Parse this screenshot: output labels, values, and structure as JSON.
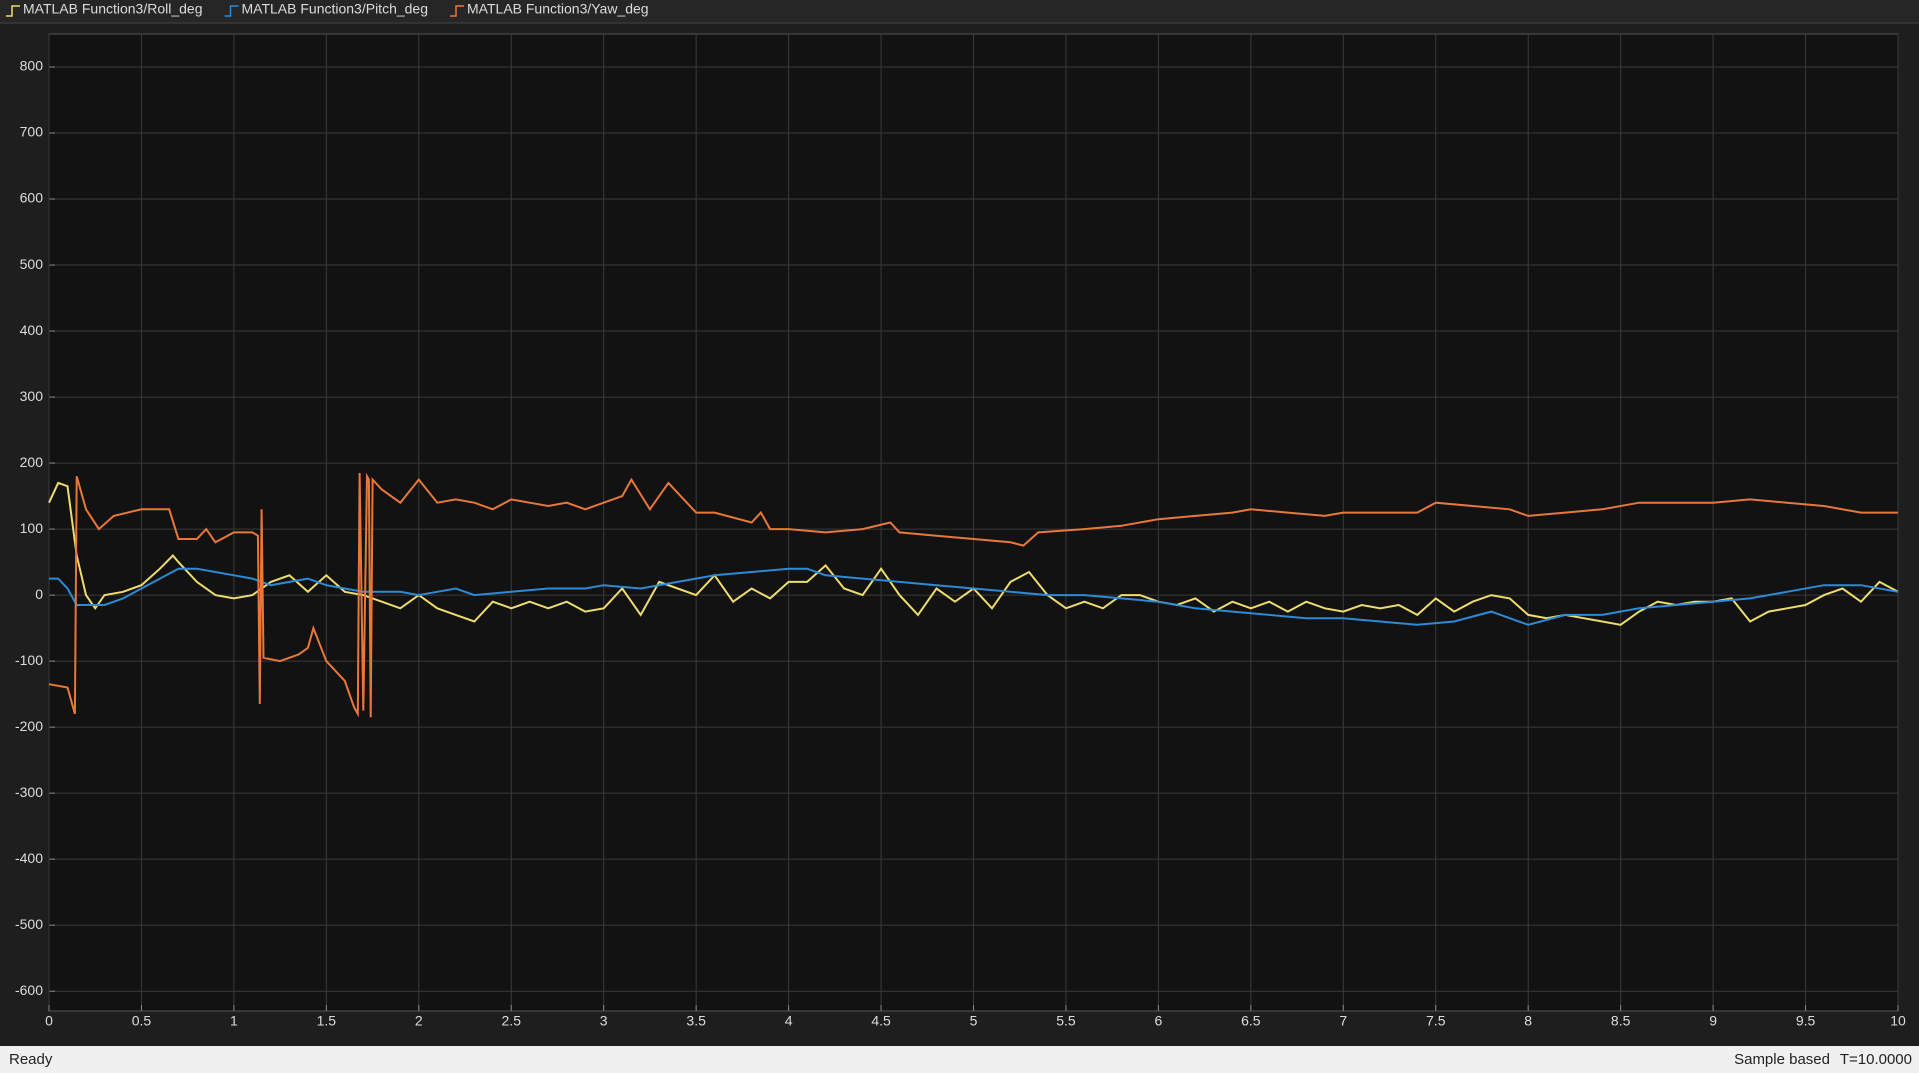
{
  "chart_data": {
    "type": "line",
    "series": [
      {
        "name": "MATLAB Function3/Roll_deg",
        "color": "#eedc6c",
        "x": [
          0,
          0.05,
          0.1,
          0.15,
          0.2,
          0.25,
          0.3,
          0.4,
          0.5,
          0.6,
          0.67,
          0.7,
          0.8,
          0.9,
          1.0,
          1.1,
          1.2,
          1.3,
          1.4,
          1.5,
          1.6,
          1.7,
          1.8,
          1.9,
          2.0,
          2.1,
          2.2,
          2.3,
          2.4,
          2.5,
          2.6,
          2.7,
          2.8,
          2.9,
          3.0,
          3.1,
          3.2,
          3.3,
          3.4,
          3.5,
          3.6,
          3.7,
          3.8,
          3.9,
          4.0,
          4.1,
          4.2,
          4.3,
          4.4,
          4.5,
          4.6,
          4.7,
          4.8,
          4.9,
          5.0,
          5.1,
          5.2,
          5.3,
          5.4,
          5.5,
          5.6,
          5.7,
          5.8,
          5.9,
          6.0,
          6.1,
          6.2,
          6.3,
          6.4,
          6.5,
          6.6,
          6.7,
          6.8,
          6.9,
          7.0,
          7.1,
          7.2,
          7.3,
          7.4,
          7.5,
          7.6,
          7.7,
          7.8,
          7.9,
          8.0,
          8.1,
          8.2,
          8.3,
          8.4,
          8.5,
          8.6,
          8.7,
          8.8,
          8.9,
          9.0,
          9.1,
          9.2,
          9.3,
          9.4,
          9.5,
          9.6,
          9.7,
          9.8,
          9.9,
          10
        ],
        "values": [
          140,
          170,
          165,
          60,
          0,
          -20,
          0,
          5,
          15,
          40,
          60,
          50,
          20,
          0,
          -5,
          0,
          20,
          30,
          5,
          30,
          5,
          0,
          -10,
          -20,
          0,
          -20,
          -30,
          -40,
          -10,
          -20,
          -10,
          -20,
          -10,
          -25,
          -20,
          10,
          -30,
          20,
          10,
          0,
          30,
          -10,
          10,
          -5,
          20,
          20,
          45,
          10,
          0,
          40,
          0,
          -30,
          10,
          -10,
          10,
          -20,
          20,
          35,
          0,
          -20,
          -10,
          -20,
          0,
          0,
          -10,
          -15,
          -5,
          -25,
          -10,
          -20,
          -10,
          -25,
          -10,
          -20,
          -25,
          -15,
          -20,
          -15,
          -30,
          -5,
          -25,
          -10,
          0,
          -5,
          -30,
          -35,
          -30,
          -35,
          -40,
          -45,
          -25,
          -10,
          -15,
          -10,
          -10,
          -5,
          -40,
          -25,
          -20,
          -15,
          0,
          10,
          -10,
          20,
          5
        ]
      },
      {
        "name": "MATLAB Function3/Pitch_deg",
        "color": "#2d8ad6",
        "x": [
          0,
          0.05,
          0.1,
          0.15,
          0.3,
          0.4,
          0.5,
          0.6,
          0.7,
          0.8,
          0.9,
          1.0,
          1.1,
          1.2,
          1.3,
          1.4,
          1.5,
          1.6,
          1.7,
          1.8,
          1.9,
          2.0,
          2.1,
          2.2,
          2.3,
          2.5,
          2.7,
          2.9,
          3.0,
          3.2,
          3.4,
          3.5,
          3.6,
          3.8,
          4.0,
          4.1,
          4.2,
          4.4,
          4.6,
          4.8,
          5.0,
          5.2,
          5.4,
          5.6,
          5.8,
          6.0,
          6.2,
          6.4,
          6.6,
          6.8,
          7.0,
          7.2,
          7.4,
          7.6,
          7.8,
          8.0,
          8.2,
          8.4,
          8.6,
          8.8,
          9.0,
          9.2,
          9.4,
          9.6,
          9.8,
          10
        ],
        "values": [
          25,
          25,
          10,
          -15,
          -15,
          -5,
          10,
          25,
          40,
          40,
          35,
          30,
          25,
          15,
          20,
          25,
          15,
          10,
          5,
          5,
          5,
          0,
          5,
          10,
          0,
          5,
          10,
          10,
          15,
          10,
          20,
          25,
          30,
          35,
          40,
          40,
          30,
          25,
          20,
          15,
          10,
          5,
          0,
          0,
          -5,
          -10,
          -20,
          -25,
          -30,
          -35,
          -35,
          -40,
          -45,
          -40,
          -25,
          -45,
          -30,
          -30,
          -20,
          -15,
          -10,
          -5,
          5,
          15,
          15,
          5
        ]
      },
      {
        "name": "MATLAB Function3/Yaw_deg",
        "color": "#e8783a",
        "x": [
          0,
          0.1,
          0.14,
          0.15,
          0.2,
          0.27,
          0.35,
          0.5,
          0.65,
          0.7,
          0.8,
          0.85,
          0.9,
          1.0,
          1.1,
          1.13,
          1.14,
          1.15,
          1.16,
          1.25,
          1.35,
          1.4,
          1.43,
          1.5,
          1.6,
          1.65,
          1.67,
          1.68,
          1.7,
          1.72,
          1.73,
          1.74,
          1.75,
          1.8,
          1.9,
          2.0,
          2.1,
          2.2,
          2.3,
          2.4,
          2.5,
          2.6,
          2.7,
          2.8,
          2.9,
          3.0,
          3.1,
          3.15,
          3.25,
          3.35,
          3.5,
          3.6,
          3.8,
          3.85,
          3.9,
          4.0,
          4.2,
          4.4,
          4.55,
          4.6,
          4.8,
          5.0,
          5.2,
          5.27,
          5.35,
          5.6,
          5.8,
          6.0,
          6.2,
          6.4,
          6.5,
          6.7,
          6.9,
          7.0,
          7.2,
          7.4,
          7.5,
          7.7,
          7.9,
          8.0,
          8.2,
          8.4,
          8.6,
          8.8,
          9.0,
          9.2,
          9.4,
          9.6,
          9.8,
          10
        ],
        "values": [
          -135,
          -140,
          -180,
          180,
          130,
          100,
          120,
          130,
          130,
          85,
          85,
          100,
          80,
          95,
          95,
          90,
          -165,
          130,
          -95,
          -100,
          -90,
          -80,
          -50,
          -100,
          -130,
          -170,
          -180,
          185,
          -175,
          180,
          175,
          -185,
          175,
          160,
          140,
          175,
          140,
          145,
          140,
          130,
          145,
          140,
          135,
          140,
          130,
          140,
          150,
          175,
          130,
          170,
          125,
          125,
          110,
          125,
          100,
          100,
          95,
          100,
          110,
          95,
          90,
          85,
          80,
          75,
          95,
          100,
          105,
          115,
          120,
          125,
          130,
          125,
          120,
          125,
          125,
          125,
          140,
          135,
          130,
          120,
          125,
          130,
          140,
          140,
          140,
          145,
          140,
          135,
          125,
          125
        ]
      }
    ],
    "xlim": [
      0,
      10
    ],
    "ylim": [
      -630,
      850
    ],
    "xticks": [
      0,
      0.5,
      1,
      1.5,
      2,
      2.5,
      3,
      3.5,
      4,
      4.5,
      5,
      5.5,
      6,
      6.5,
      7,
      7.5,
      8,
      8.5,
      9,
      9.5,
      10
    ],
    "yticks": [
      -600,
      -500,
      -400,
      -300,
      -200,
      -100,
      0,
      100,
      200,
      300,
      400,
      500,
      600,
      700,
      800
    ],
    "grid": true
  },
  "status_bar": {
    "left": "Ready",
    "mode": "Sample based",
    "time": "T=10.0000"
  }
}
